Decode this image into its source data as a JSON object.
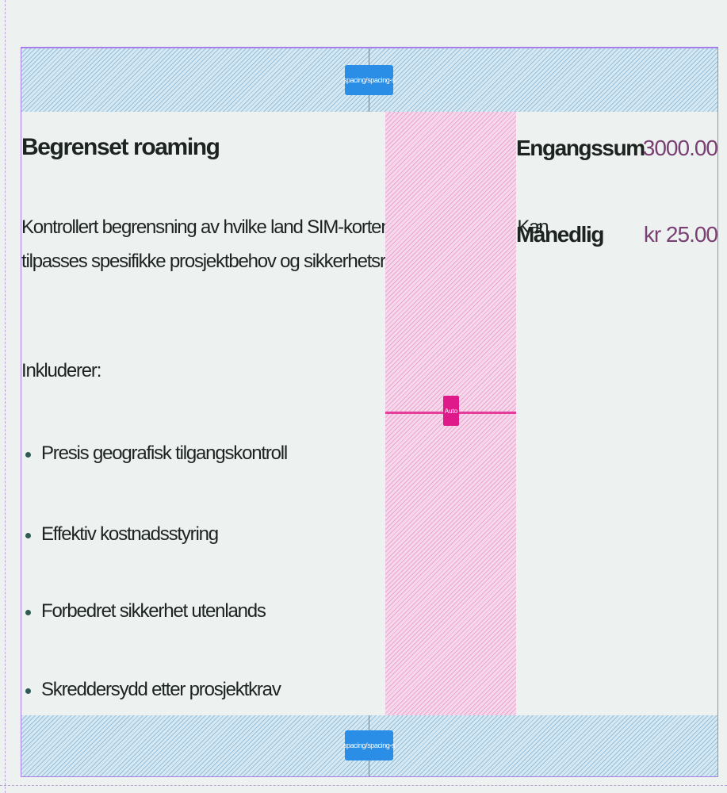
{
  "spacing": {
    "top_label": "spacing/spacing-s",
    "bottom_label": "spacing/spacing-s",
    "auto_label": "Auto"
  },
  "product": {
    "title": "Begrenset roaming",
    "description_lines": [
      "Kontrollert begrensning av hvilke land SIM-kortene kan benyttes i. Kan",
      "tilpasses spesifikke prosjektbehov og sikkerhetsrutiner."
    ],
    "includes_label": "Inkluderer:",
    "features": [
      "Presis geografisk tilgangskontroll",
      "Effektiv kostnadsstyring",
      "Forbedret sikkerhet utenlands",
      "Skreddersydd etter prosjektkrav"
    ]
  },
  "pricing": {
    "rows": [
      {
        "label": "Engangssum",
        "value": "3000.00"
      },
      {
        "label": "Månedlig",
        "value": "kr 25.00"
      }
    ]
  },
  "colors": {
    "background": "#edf1f0",
    "frame_outline": "#a77de8",
    "spacing_badge": "#2a8de6",
    "auto_badge": "#e0198a",
    "price_value": "#7a3f73",
    "text": "#1c2320",
    "bullet": "#2f5a55"
  }
}
